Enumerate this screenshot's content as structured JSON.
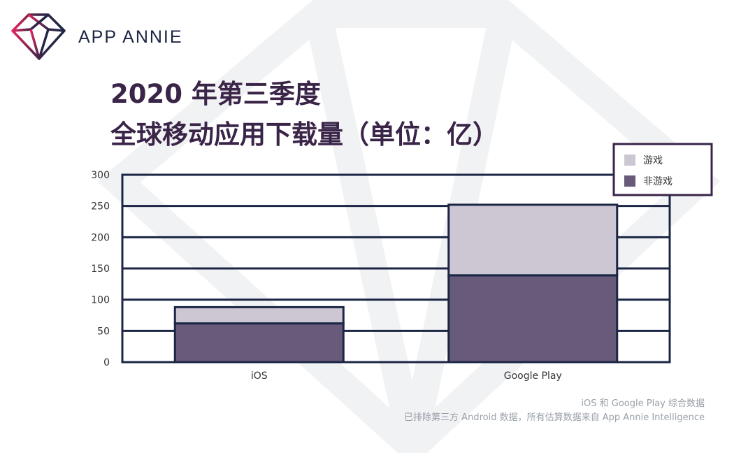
{
  "brand": {
    "name": "APP ANNIE"
  },
  "title": {
    "line1": "2020 年第三季度",
    "line2": "全球移动应用下载量（单位：亿）"
  },
  "colors": {
    "game": "#cdc7d3",
    "non_game": "#685a79",
    "outline": "#1b2644",
    "title": "#3a2448",
    "legend_border": "#3a2448"
  },
  "chart_data": {
    "type": "bar",
    "stacked": true,
    "categories": [
      "iOS",
      "Google Play"
    ],
    "series": [
      {
        "name": "非游戏",
        "values": [
          62,
          139
        ]
      },
      {
        "name": "游戏",
        "values": [
          26,
          113
        ]
      }
    ],
    "ylim": [
      0,
      300
    ],
    "yticks": [
      0,
      50,
      100,
      150,
      200,
      250,
      300
    ],
    "grid": true,
    "legend_position": "top-right",
    "legend": [
      "游戏",
      "非游戏"
    ]
  },
  "footnote": {
    "line1": "iOS 和 Google Play 综合数据",
    "line2": "已排除第三方 Android 数据，所有估算数据来自 App Annie Intelligence"
  }
}
